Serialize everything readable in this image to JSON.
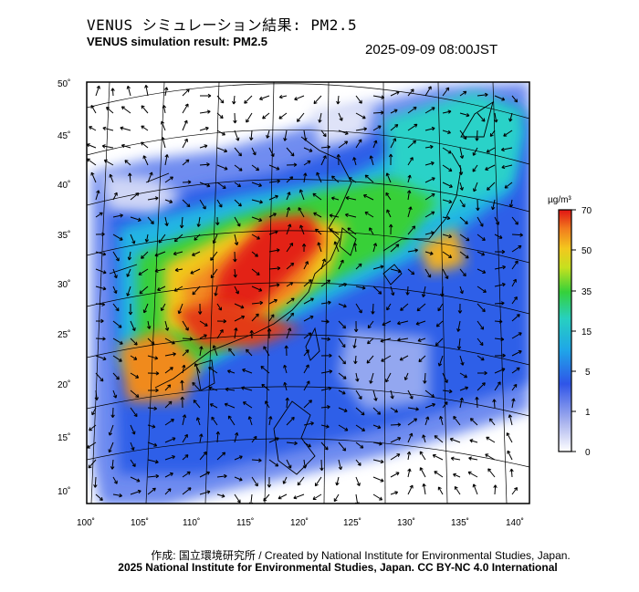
{
  "header": {
    "title_jp": "VENUS シミュレーション結果: PM2.5",
    "title_en": "VENUS simulation result: PM2.5",
    "timestamp": "2025-09-09 08:00JST"
  },
  "map": {
    "lat_ticks": [
      "50˚",
      "45˚",
      "40˚",
      "35˚",
      "30˚",
      "25˚",
      "20˚",
      "15˚",
      "10˚"
    ],
    "lon_ticks": [
      "100˚",
      "105˚",
      "110˚",
      "115˚",
      "120˚",
      "125˚",
      "130˚",
      "135˚",
      "140˚"
    ],
    "colors": {
      "frame": "#000000",
      "background": "#ffffff",
      "low": "#dfe3f8",
      "blue": "#2f6ff0",
      "cyan": "#22c6d8",
      "green": "#2cc94a",
      "yellow": "#f1d021",
      "orange": "#f28a20",
      "red": "#e32216"
    }
  },
  "colorbar": {
    "unit": "µg/m³",
    "labels": [
      "70",
      "50",
      "35",
      "15",
      "5",
      "1",
      "0"
    ]
  },
  "footer": {
    "credit": "作成: 国立環境研究所 / Created by National Institute for Environmental Studies, Japan.",
    "license": "2025 National Institute for Environmental Studies, Japan. CC BY-NC 4.0 International"
  }
}
